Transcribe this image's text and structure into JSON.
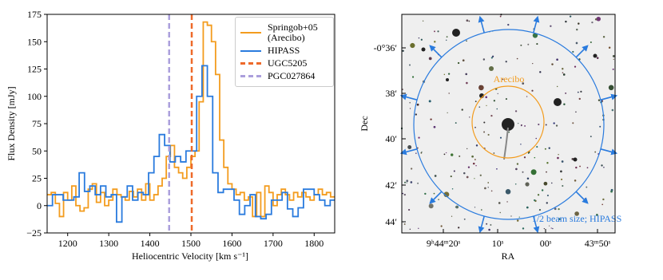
{
  "chart_data": {
    "type": "step",
    "xlabel": "Heliocentric Velocity [km s⁻¹]",
    "ylabel": "Flux Density [mJy]",
    "xlim": [
      1150,
      1850
    ],
    "xticks": [
      1200,
      1300,
      1400,
      1500,
      1600,
      1700,
      1800
    ],
    "ylim": [
      -25,
      175
    ],
    "yticks": [
      {
        "value": -25,
        "label": "−25"
      },
      0,
      25,
      50,
      75,
      100,
      125,
      150,
      175
    ],
    "legend": "upper right",
    "series": [
      {
        "name": "Springob+05\n(Arecibo)",
        "color": "#f39c1e",
        "x": [
          1150,
          1160,
          1170,
          1180,
          1190,
          1200,
          1210,
          1220,
          1230,
          1240,
          1250,
          1260,
          1270,
          1280,
          1290,
          1300,
          1310,
          1320,
          1330,
          1340,
          1350,
          1360,
          1370,
          1380,
          1390,
          1400,
          1410,
          1420,
          1430,
          1440,
          1450,
          1460,
          1470,
          1480,
          1490,
          1500,
          1510,
          1520,
          1530,
          1540,
          1550,
          1560,
          1570,
          1580,
          1590,
          1600,
          1610,
          1620,
          1630,
          1640,
          1650,
          1660,
          1670,
          1680,
          1690,
          1700,
          1710,
          1720,
          1730,
          1740,
          1750,
          1760,
          1770,
          1780,
          1790,
          1800,
          1810,
          1820,
          1830,
          1840
        ],
        "values": [
          10,
          12,
          2,
          -10,
          12,
          5,
          18,
          0,
          -5,
          -2,
          15,
          20,
          3,
          12,
          0,
          5,
          15,
          10,
          8,
          5,
          13,
          8,
          15,
          5,
          20,
          5,
          10,
          18,
          25,
          45,
          55,
          35,
          30,
          25,
          35,
          45,
          50,
          95,
          168,
          165,
          150,
          120,
          60,
          35,
          20,
          15,
          10,
          12,
          5,
          8,
          -10,
          12,
          -10,
          18,
          12,
          0,
          10,
          15,
          10,
          5,
          12,
          8,
          12,
          8,
          5,
          10,
          15,
          10,
          12,
          8
        ]
      },
      {
        "name": "HIPASS",
        "color": "#2a7bde",
        "x": [
          1150,
          1163,
          1176,
          1189,
          1202,
          1215,
          1228,
          1241,
          1254,
          1267,
          1280,
          1293,
          1306,
          1319,
          1332,
          1345,
          1358,
          1371,
          1384,
          1397,
          1410,
          1423,
          1436,
          1449,
          1462,
          1475,
          1488,
          1501,
          1514,
          1527,
          1540,
          1553,
          1566,
          1579,
          1592,
          1605,
          1618,
          1631,
          1644,
          1657,
          1670,
          1683,
          1696,
          1709,
          1722,
          1735,
          1748,
          1761,
          1774,
          1787,
          1800,
          1813,
          1826,
          1839
        ],
        "values": [
          0,
          10,
          10,
          5,
          5,
          8,
          30,
          13,
          18,
          10,
          18,
          8,
          10,
          -15,
          8,
          18,
          5,
          12,
          10,
          30,
          45,
          65,
          55,
          40,
          45,
          40,
          50,
          50,
          100,
          128,
          100,
          30,
          12,
          15,
          15,
          5,
          -8,
          0,
          10,
          -10,
          -12,
          -8,
          5,
          5,
          12,
          -3,
          -10,
          -2,
          15,
          15,
          10,
          5,
          0,
          5
        ]
      }
    ],
    "vlines": [
      {
        "name": "UGC5205",
        "color": "#ee6a2a",
        "x": 1502
      },
      {
        "name": "PGC027864",
        "color": "#ab9fdc",
        "x": 1447
      }
    ]
  },
  "image_panel": {
    "xlabel": "RA",
    "ylabel": "Dec",
    "xtick_labels": [
      "9ʰ44ᵐ20ˢ",
      "10ˢ",
      "00ˢ",
      "43ᵐ50ˢ"
    ],
    "ytick_labels": [
      "-0°36′",
      "38′",
      "40′",
      "42′",
      "44′"
    ],
    "inner_label": "Arecibo",
    "outer_label": "1/2 beam size; HIPASS"
  }
}
